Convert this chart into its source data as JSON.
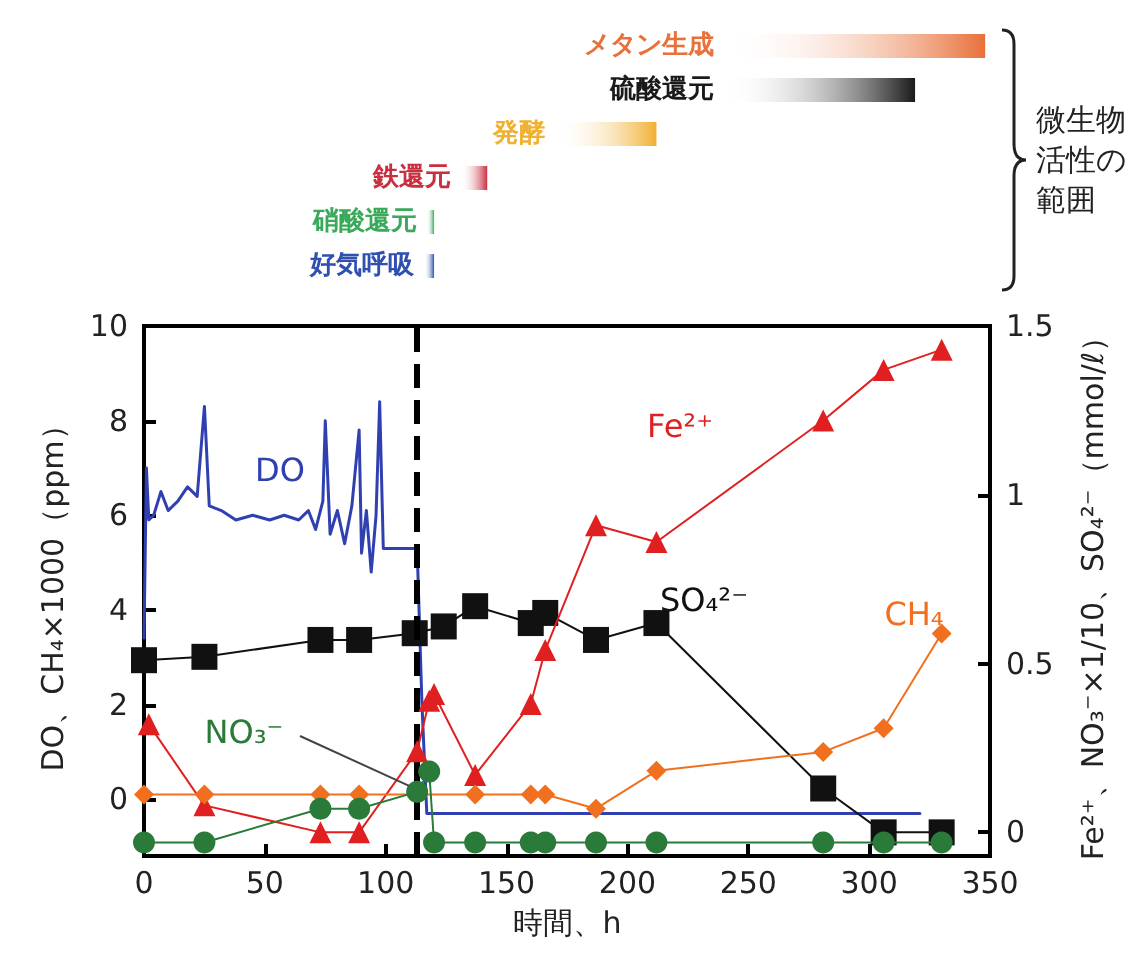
{
  "chart_data": [
    {
      "type": "bar",
      "orientation": "horizontal",
      "categories": [
        "メタン生成",
        "硫酸還元",
        "発酵",
        "鉄還元",
        "硝酸還元",
        "好気呼吸"
      ],
      "base": [
        240,
        240,
        170,
        131,
        117,
        116
      ],
      "values": [
        108,
        79,
        42,
        11,
        3,
        4
      ],
      "colors": [
        "#e8703a",
        "#1a1a1a",
        "#f0b030",
        "#c83040",
        "#3aaa5a",
        "#3050b0"
      ],
      "xlim": [
        0,
        350
      ],
      "tick_labels": false,
      "annotations": [
        "微生物活性の範囲"
      ]
    },
    {
      "type": "line",
      "xlabel": "時間、h",
      "ylabel": "DO、CH₄×1000（ppm）",
      "y2label": "Fe²⁺、NO₃⁻×1/10、SO₄²⁻（mmol/ℓ）",
      "xlim": [
        0,
        350
      ],
      "xticks": [
        0,
        50,
        100,
        150,
        200,
        250,
        300,
        350
      ],
      "ylim": [
        -1.2,
        10
      ],
      "yticks": [
        0,
        2,
        4,
        6,
        8,
        10
      ],
      "y2lim": [
        -0.07,
        1.5
      ],
      "y2ticks": [
        0,
        0.5,
        1,
        1.5
      ],
      "grid": false,
      "ref_lines": [
        {
          "axis": "x",
          "value": 113,
          "color": "#000000",
          "line_style": "dashed"
        }
      ],
      "series": [
        {
          "name": "DO",
          "color": "#3040b0",
          "marker": "none",
          "x": [
            0,
            1,
            2,
            4,
            7,
            10,
            14,
            18,
            22,
            25,
            27,
            32,
            38,
            45,
            52,
            58,
            64,
            68,
            71,
            74,
            75,
            77,
            80,
            83,
            86,
            89,
            90,
            92,
            94,
            96,
            97.5,
            99,
            113,
            115,
            117,
            321
          ],
          "values": [
            3.4,
            7.0,
            5.9,
            6.0,
            6.5,
            6.1,
            6.3,
            6.6,
            6.4,
            8.3,
            6.2,
            6.1,
            5.9,
            6.0,
            5.9,
            6.0,
            5.9,
            6.1,
            5.7,
            6.3,
            8.0,
            5.6,
            6.1,
            5.4,
            6.2,
            7.8,
            5.2,
            6.1,
            4.8,
            6.0,
            8.4,
            5.3,
            5.3,
            2.0,
            -0.3,
            -0.3
          ]
        },
        {
          "name": "SO₄²⁻",
          "color": "#111111",
          "marker": "square",
          "axis": "y2",
          "x": [
            0,
            25,
            73,
            89,
            112,
            120,
            124,
            137,
            160,
            166,
            187,
            212,
            281,
            306,
            330
          ],
          "values": [
            0.51,
            0.52,
            0.57,
            0.57,
            0.59,
            null,
            0.61,
            0.67,
            0.62,
            0.65,
            0.57,
            0.62,
            0.13,
            0,
            0
          ]
        },
        {
          "name": "Fe²⁺",
          "color": "#e02020",
          "marker": "triangle",
          "axis": "y2",
          "x": [
            2,
            25,
            73,
            89,
            113,
            118,
            120,
            137,
            160,
            166,
            187,
            212,
            281,
            306,
            330
          ],
          "values": [
            0.32,
            0.08,
            0,
            0,
            0.24,
            0.39,
            0.41,
            0.17,
            0.38,
            0.54,
            0.91,
            0.86,
            1.22,
            1.37,
            1.43
          ]
        },
        {
          "name": "CH₄",
          "color": "#f07020",
          "marker": "diamond",
          "x": [
            0,
            25,
            73,
            89,
            113,
            118,
            137,
            160,
            166,
            187,
            212,
            281,
            306,
            330
          ],
          "values": [
            0.1,
            0.1,
            0.1,
            0.1,
            null,
            null,
            0.1,
            0.1,
            0.1,
            -0.2,
            0.6,
            1.0,
            1.5,
            3.5
          ]
        },
        {
          "name": "NO₃⁻",
          "color": "#2a7a3a",
          "marker": "circle",
          "axis": "y2",
          "x": [
            0,
            25,
            73,
            89,
            113,
            118,
            120,
            137,
            160,
            166,
            187,
            212,
            281,
            306,
            330
          ],
          "values": [
            -0.03,
            -0.03,
            0.07,
            0.07,
            0.12,
            0.18,
            -0.03,
            -0.03,
            -0.03,
            -0.03,
            -0.03,
            -0.03,
            -0.03,
            -0.03,
            -0.03
          ]
        }
      ]
    }
  ]
}
